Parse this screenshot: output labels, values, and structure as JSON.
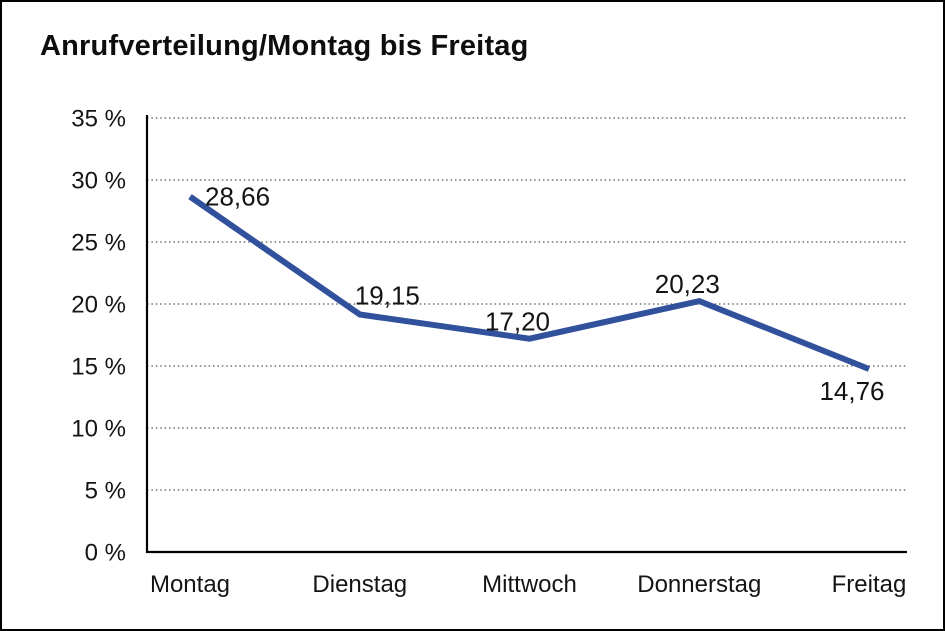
{
  "window": {
    "background": "#ffffff",
    "border_color": "#000000"
  },
  "chart_data": {
    "type": "line",
    "title": "Anrufverteilung/Montag bis Freitag",
    "categories": [
      "Montag",
      "Dienstag",
      "Mittwoch",
      "Donnerstag",
      "Freitag"
    ],
    "series": [
      {
        "values": [
          28.66,
          19.15,
          17.2,
          20.23,
          14.76
        ],
        "point_labels": [
          "28,66",
          "19,15",
          "17,20",
          "20,23",
          "14,76"
        ],
        "color": "#32519D"
      }
    ],
    "xlabel": "",
    "ylabel": "",
    "ylim": [
      0,
      35
    ],
    "y_tick_step": 5,
    "y_tick_labels": [
      "0 %",
      "5 %",
      "10 %",
      "15 %",
      "20 %",
      "25 %",
      "30 %",
      "35 %"
    ],
    "grid": "horizontal-dotted",
    "legend": "none",
    "label_placements": [
      "right",
      "above-right",
      "above",
      "above",
      "below"
    ]
  },
  "colors": {
    "line": "#32519D",
    "grid": "#6e6e6e",
    "axis": "#000000",
    "text": "#141414"
  }
}
